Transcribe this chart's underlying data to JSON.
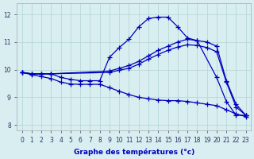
{
  "background_color": "#d8eef0",
  "grid_color": "#b8d8d8",
  "line_color": "#0000bb",
  "marker": "+",
  "markersize": 4,
  "linewidth": 0.9,
  "xlabel": "Graphe des températures (°c)",
  "xlabel_color": "#0000bb",
  "xlim": [
    -0.5,
    23.5
  ],
  "ylim": [
    7.8,
    12.4
  ],
  "yticks": [
    8,
    9,
    10,
    11,
    12
  ],
  "xticks": [
    0,
    1,
    2,
    3,
    4,
    5,
    6,
    7,
    8,
    9,
    10,
    11,
    12,
    13,
    14,
    15,
    16,
    17,
    18,
    19,
    20,
    21,
    22,
    23
  ],
  "series": [
    {
      "x": [
        0,
        1,
        2,
        3,
        4,
        5,
        6,
        7,
        8,
        9,
        10,
        11,
        12,
        13,
        14,
        15,
        16,
        17,
        18,
        20,
        21,
        22,
        23
      ],
      "y": [
        9.9,
        9.85,
        9.85,
        9.85,
        9.72,
        9.65,
        9.6,
        9.6,
        9.6,
        10.45,
        10.8,
        11.1,
        11.55,
        11.85,
        11.9,
        11.9,
        11.55,
        11.15,
        11.05,
        9.72,
        8.85,
        8.35,
        8.35
      ]
    },
    {
      "x": [
        0,
        1,
        2,
        3,
        9,
        10,
        11,
        12,
        13,
        14,
        15,
        16,
        17,
        18,
        19,
        20,
        21,
        22,
        23
      ],
      "y": [
        9.9,
        9.85,
        9.85,
        9.85,
        9.95,
        10.05,
        10.15,
        10.3,
        10.5,
        10.7,
        10.85,
        11.0,
        11.1,
        11.05,
        11.0,
        10.85,
        9.6,
        8.75,
        8.35
      ]
    },
    {
      "x": [
        0,
        1,
        2,
        3,
        9,
        10,
        11,
        12,
        13,
        14,
        15,
        16,
        17,
        18,
        19,
        20,
        21,
        22,
        23
      ],
      "y": [
        9.9,
        9.85,
        9.85,
        9.85,
        9.9,
        9.98,
        10.05,
        10.2,
        10.38,
        10.55,
        10.7,
        10.82,
        10.9,
        10.88,
        10.8,
        10.65,
        9.55,
        8.65,
        8.35
      ]
    },
    {
      "x": [
        0,
        1,
        2,
        3,
        4,
        5,
        6,
        7,
        8,
        9,
        10,
        11,
        12,
        13,
        14,
        15,
        16,
        17,
        18,
        19,
        20,
        21,
        22,
        23
      ],
      "y": [
        9.9,
        9.82,
        9.75,
        9.68,
        9.55,
        9.48,
        9.47,
        9.47,
        9.47,
        9.35,
        9.22,
        9.1,
        9.0,
        8.95,
        8.9,
        8.88,
        8.88,
        8.85,
        8.8,
        8.75,
        8.7,
        8.55,
        8.4,
        8.3
      ]
    }
  ]
}
